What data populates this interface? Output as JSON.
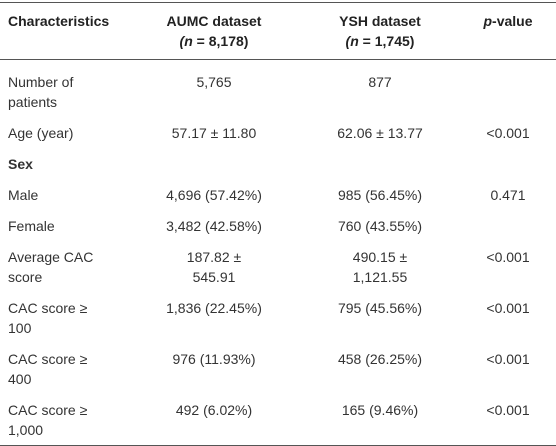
{
  "table": {
    "header": [
      {
        "line1": "Characteristics"
      },
      {
        "line1": "AUMC dataset",
        "line2": [
          "(",
          "n",
          " = 8,178)"
        ]
      },
      {
        "line1": "YSH dataset",
        "line2": [
          "(",
          "n",
          " = 1,745)"
        ]
      },
      {
        "line1": [
          "p",
          "-value"
        ]
      }
    ],
    "rows": [
      [
        "Number of patients",
        "5,765",
        "877",
        null
      ],
      [
        "Age (year)",
        "57.17 ± 11.80",
        "62.06 ± 13.77",
        "<0.001"
      ],
      [
        "Sex",
        null,
        null,
        null
      ],
      [
        "Male",
        "4,696 (57.42%)",
        "985 (56.45%)",
        "0.471"
      ],
      [
        "Female",
        "3,482 (42.58%)",
        "760 (43.55%)",
        null
      ],
      [
        "Average CAC score",
        "187.82 ± 545.91",
        "490.15 ± 1,121.55",
        "<0.001"
      ],
      [
        "CAC score ≥ 100",
        "1,836 (22.45%)",
        "795 (45.56%)",
        "<0.001"
      ],
      [
        "CAC score ≥ 400",
        "976 (11.93%)",
        "458 (26.25%)",
        "<0.001"
      ],
      [
        "CAC score ≥ 1,000",
        "492 (6.02%)",
        "165 (9.46%)",
        "<0.001"
      ]
    ]
  }
}
